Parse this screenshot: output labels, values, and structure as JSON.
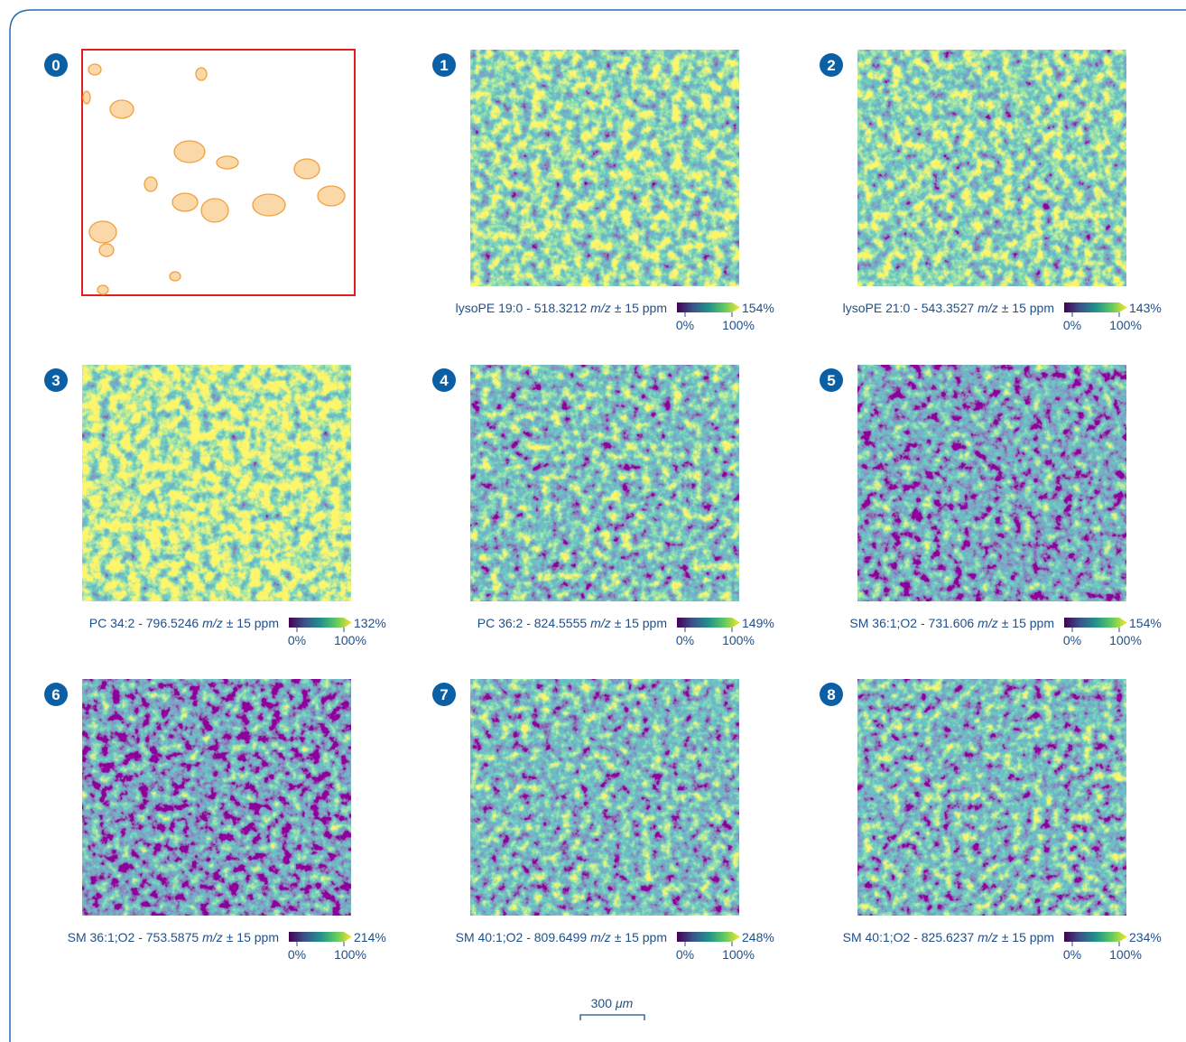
{
  "overview": {
    "number": "0"
  },
  "panels": [
    {
      "number": "1",
      "name": "lysoPE 19:0 - 518.3212",
      "unit": "m/z",
      "tolerance": "± 15 ppm",
      "min": "0%",
      "mid": "100%",
      "max": "154%"
    },
    {
      "number": "2",
      "name": "lysoPE 21:0 - 543.3527",
      "unit": "m/z",
      "tolerance": "± 15 ppm",
      "min": "0%",
      "mid": "100%",
      "max": "143%"
    },
    {
      "number": "3",
      "name": "PC 34:2 - 796.5246",
      "unit": "m/z",
      "tolerance": "± 15 ppm",
      "min": "0%",
      "mid": "100%",
      "max": "132%"
    },
    {
      "number": "4",
      "name": "PC 36:2 - 824.5555",
      "unit": "m/z",
      "tolerance": "± 15 ppm",
      "min": "0%",
      "mid": "100%",
      "max": "149%"
    },
    {
      "number": "5",
      "name": "SM 36:1;O2 - 731.606",
      "unit": "m/z",
      "tolerance": "± 15 ppm",
      "min": "0%",
      "mid": "100%",
      "max": "154%"
    },
    {
      "number": "6",
      "name": "SM 36:1;O2 - 753.5875",
      "unit": "m/z",
      "tolerance": "± 15 ppm",
      "min": "0%",
      "mid": "100%",
      "max": "214%"
    },
    {
      "number": "7",
      "name": "SM 40:1;O2 - 809.6499",
      "unit": "m/z",
      "tolerance": "± 15 ppm",
      "min": "0%",
      "mid": "100%",
      "max": "248%"
    },
    {
      "number": "8",
      "name": "SM 40:1;O2 - 825.6237",
      "unit": "m/z",
      "tolerance": "± 15 ppm",
      "min": "0%",
      "mid": "100%",
      "max": "234%"
    }
  ],
  "scale_bar": {
    "length": "300",
    "unit": "μm"
  }
}
